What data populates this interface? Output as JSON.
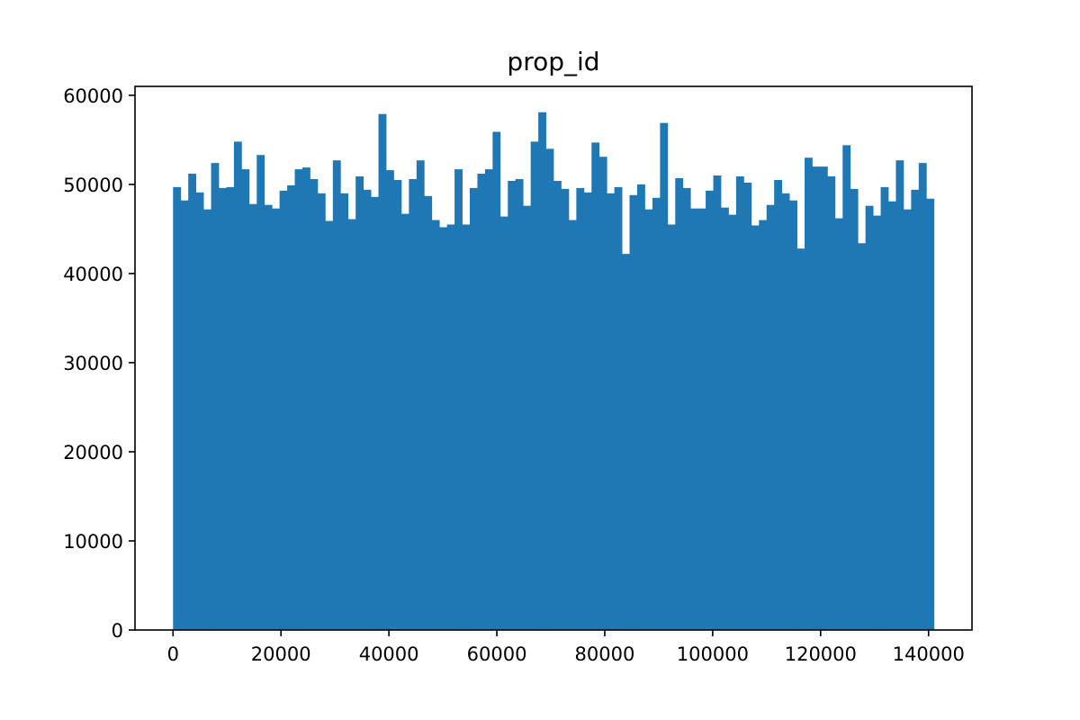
{
  "chart_data": {
    "type": "bar",
    "title": "prop_id",
    "xlabel": "",
    "ylabel": "",
    "bar_color": "#1f77b4",
    "grid": false,
    "xlim": [
      -7050,
      148050
    ],
    "ylim": [
      0,
      61000
    ],
    "x_ticks": [
      0,
      20000,
      40000,
      60000,
      80000,
      100000,
      120000,
      140000
    ],
    "x_tick_labels": [
      "0",
      "20000",
      "40000",
      "60000",
      "80000",
      "100000",
      "120000",
      "140000"
    ],
    "y_ticks": [
      0,
      10000,
      20000,
      30000,
      40000,
      50000,
      60000
    ],
    "y_tick_labels": [
      "0",
      "10000",
      "20000",
      "30000",
      "40000",
      "50000",
      "60000"
    ],
    "bin_start": 0,
    "bin_end": 141000,
    "values": [
      49700,
      48200,
      51200,
      49100,
      47200,
      52400,
      49600,
      49700,
      54800,
      51700,
      47800,
      53300,
      47700,
      47300,
      49300,
      49900,
      51700,
      51900,
      50600,
      49000,
      45900,
      52700,
      49000,
      46100,
      50900,
      49400,
      48600,
      57900,
      51600,
      50500,
      46700,
      50600,
      52700,
      48700,
      46000,
      45200,
      45500,
      51700,
      45500,
      49600,
      51200,
      51700,
      55900,
      46400,
      50400,
      50600,
      47600,
      54800,
      58100,
      54000,
      50400,
      49500,
      46000,
      49600,
      49100,
      54700,
      53100,
      49000,
      49700,
      42200,
      48800,
      50000,
      47200,
      48500,
      56900,
      45500,
      50700,
      49600,
      47300,
      47300,
      49300,
      51000,
      47400,
      46600,
      50900,
      50200,
      45400,
      46000,
      47700,
      50500,
      49000,
      48200,
      42800,
      53000,
      52000,
      52000,
      50900,
      46200,
      54400,
      49500,
      43400,
      47600,
      46500,
      49700,
      48100,
      52700,
      47200,
      49400,
      52400,
      48400
    ]
  }
}
